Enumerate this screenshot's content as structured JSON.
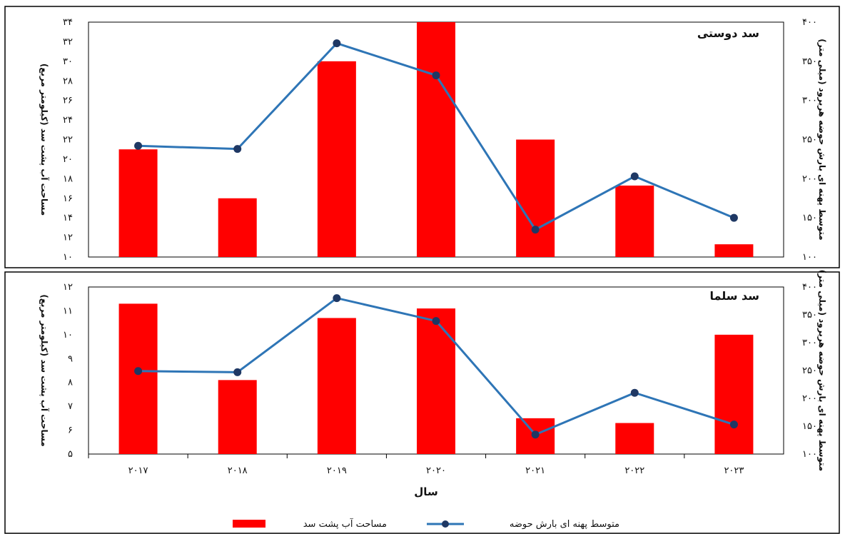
{
  "colors": {
    "bar": "#ff0000",
    "line": "#2e75b6",
    "marker": "#1f3864"
  },
  "xaxis": {
    "label": "سال"
  },
  "legend": {
    "bar_label": "مساحت آب پشت سد",
    "line_label": "متوسط پهنه ای بارش حوضه"
  },
  "chart_data": [
    {
      "type": "bar+line",
      "title": "سد دوستی",
      "categories": [
        "۲۰۱۷",
        "۲۰۱۸",
        "۲۰۱۹",
        "۲۰۲۰",
        "۲۰۲۱",
        "۲۰۲۲",
        "۲۰۲۳"
      ],
      "ylabel_left": "مساحت آب پشت سد (کیلومتر مربع)",
      "ylabel_right": "متوسط پهنه ای بارش حوضه هریرود (میلی متر)",
      "ylim_left": [
        10,
        34
      ],
      "ylim_right": [
        100,
        400
      ],
      "yticks_left": [
        "۱۰",
        "۱۲",
        "۱۴",
        "۱۶",
        "۱۸",
        "۲۰",
        "۲۲",
        "۲۴",
        "۲۶",
        "۲۸",
        "۳۰",
        "۳۲",
        "۳۴"
      ],
      "yticks_right": [
        "۱۰۰",
        "۱۵۰",
        "۲۰۰",
        "۲۵۰",
        "۳۰۰",
        "۳۵۰",
        "۴۰۰"
      ],
      "series": [
        {
          "name": "مساحت آب پشت سد",
          "type": "bar",
          "axis": "left",
          "values": [
            21,
            16,
            30,
            34,
            22,
            17.3,
            11.3
          ]
        },
        {
          "name": "متوسط پهنه ای بارش حوضه",
          "type": "line",
          "axis": "right",
          "values": [
            242,
            238,
            373,
            332,
            135,
            203,
            150
          ]
        }
      ]
    },
    {
      "type": "bar+line",
      "title": "سد سلما",
      "categories": [
        "۲۰۱۷",
        "۲۰۱۸",
        "۲۰۱۹",
        "۲۰۲۰",
        "۲۰۲۱",
        "۲۰۲۲",
        "۲۰۲۳"
      ],
      "ylabel_left": "مساحت آب پشت سد (کیلومتر مربع)",
      "ylabel_right": "متوسط پهنه ای بارش حوضه هریرود (میلی متر)",
      "ylim_left": [
        5,
        12
      ],
      "ylim_right": [
        100,
        400
      ],
      "yticks_left": [
        "۵",
        "۶",
        "۷",
        "۸",
        "۹",
        "۱۰",
        "۱۱",
        "۱۲"
      ],
      "yticks_right": [
        "۱۰۰",
        "۱۵۰",
        "۲۰۰",
        "۲۵۰",
        "۳۰۰",
        "۳۵۰",
        "۴۰۰"
      ],
      "series": [
        {
          "name": "مساحت آب پشت سد",
          "type": "bar",
          "axis": "left",
          "values": [
            11.3,
            8.1,
            10.7,
            11.1,
            6.5,
            6.3,
            10
          ]
        },
        {
          "name": "متوسط پهنه ای بارش حوضه",
          "type": "line",
          "axis": "right",
          "values": [
            249,
            247,
            380,
            339,
            135,
            210,
            153
          ]
        }
      ]
    }
  ]
}
